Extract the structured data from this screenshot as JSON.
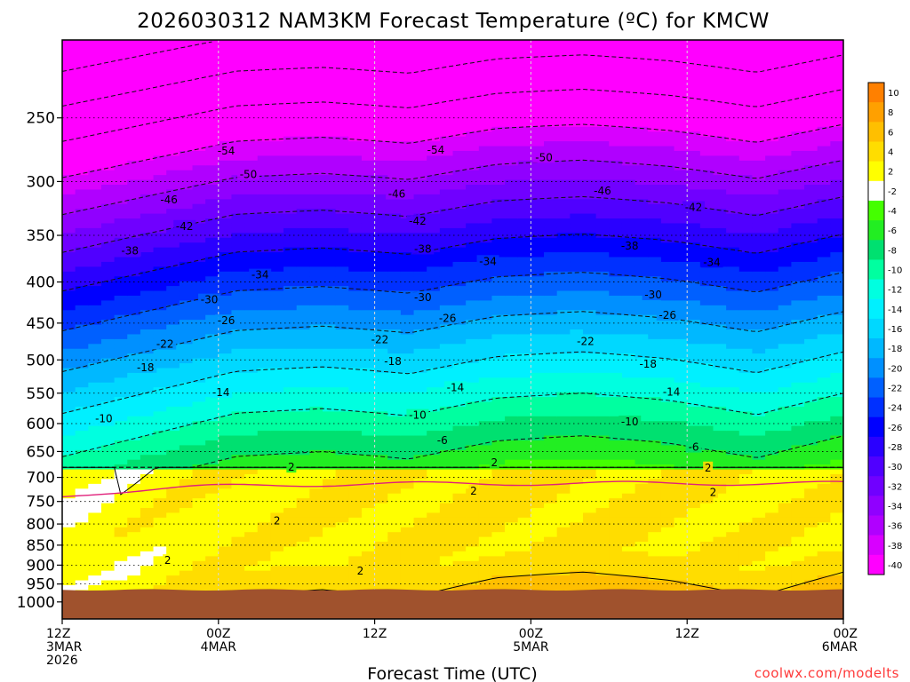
{
  "chart_data": {
    "type": "heatmap",
    "title": "2026030312 NAM3KM Forecast Temperature (ºC) for KMCW",
    "xlabel": "Forecast Time (UTC)",
    "ylabel": "",
    "units": "°C",
    "credit": "coolwx.com/modelts",
    "x_hours_range": [
      0,
      60
    ],
    "x_ticks": [
      {
        "hour": 0,
        "lines": [
          "12Z",
          "3MAR",
          "2026"
        ]
      },
      {
        "hour": 12,
        "lines": [
          "00Z",
          "4MAR"
        ]
      },
      {
        "hour": 24,
        "lines": [
          "12Z"
        ]
      },
      {
        "hour": 36,
        "lines": [
          "00Z",
          "5MAR"
        ]
      },
      {
        "hour": 48,
        "lines": [
          "12Z"
        ]
      },
      {
        "hour": 60,
        "lines": [
          "00Z",
          "6MAR"
        ]
      }
    ],
    "y_levels_hpa": [
      1000,
      950,
      900,
      850,
      800,
      750,
      700,
      650,
      600,
      550,
      500,
      450,
      400,
      350,
      300,
      250
    ],
    "y_range_hpa": [
      1050,
      200
    ],
    "colorbar": {
      "labels": [
        10,
        8,
        6,
        4,
        2,
        -2,
        -4,
        -6,
        -8,
        -10,
        -12,
        -14,
        -16,
        -18,
        -20,
        -22,
        -24,
        -26,
        -28,
        -30,
        -32,
        -34,
        -36,
        -38,
        -40
      ],
      "colors": [
        "#ff8000",
        "#ffa000",
        "#ffbf00",
        "#ffdd00",
        "#ffff00",
        "#ffffff",
        "#44ff00",
        "#22ee22",
        "#00e070",
        "#00ffa0",
        "#00ffe0",
        "#00f0ff",
        "#00d8ff",
        "#00b8ff",
        "#0090ff",
        "#0060ff",
        "#0030ff",
        "#0000ff",
        "#2a00ff",
        "#5000ff",
        "#7000ff",
        "#9000ff",
        "#b000ff",
        "#d800ff",
        "#ff00ff"
      ]
    },
    "contour_labels": [
      {
        "v": "-54",
        "h": 12.6,
        "p": 275
      },
      {
        "v": "-54",
        "h": 28.7,
        "p": 274
      },
      {
        "v": "-50",
        "h": 14.3,
        "p": 294
      },
      {
        "v": "-50",
        "h": 37.0,
        "p": 280
      },
      {
        "v": "-46",
        "h": 8.2,
        "p": 316
      },
      {
        "v": "-46",
        "h": 25.7,
        "p": 311
      },
      {
        "v": "-46",
        "h": 41.5,
        "p": 308
      },
      {
        "v": "-42",
        "h": 9.4,
        "p": 341
      },
      {
        "v": "-42",
        "h": 27.3,
        "p": 336
      },
      {
        "v": "-42",
        "h": 48.5,
        "p": 323
      },
      {
        "v": "-38",
        "h": 5.2,
        "p": 366
      },
      {
        "v": "-38",
        "h": 27.7,
        "p": 364
      },
      {
        "v": "-38",
        "h": 43.6,
        "p": 361
      },
      {
        "v": "-34",
        "h": 15.2,
        "p": 392
      },
      {
        "v": "-34",
        "h": 32.7,
        "p": 377
      },
      {
        "v": "-34",
        "h": 49.9,
        "p": 378
      },
      {
        "v": "-30",
        "h": 11.3,
        "p": 421
      },
      {
        "v": "-30",
        "h": 27.7,
        "p": 418
      },
      {
        "v": "-30",
        "h": 45.4,
        "p": 415
      },
      {
        "v": "-26",
        "h": 12.6,
        "p": 447
      },
      {
        "v": "-26",
        "h": 29.6,
        "p": 444
      },
      {
        "v": "-26",
        "h": 46.5,
        "p": 440
      },
      {
        "v": "-22",
        "h": 7.9,
        "p": 478
      },
      {
        "v": "-22",
        "h": 24.4,
        "p": 472
      },
      {
        "v": "-22",
        "h": 40.2,
        "p": 474
      },
      {
        "v": "-18",
        "h": 6.4,
        "p": 511
      },
      {
        "v": "-18",
        "h": 25.4,
        "p": 502
      },
      {
        "v": "-18",
        "h": 45.0,
        "p": 506
      },
      {
        "v": "-14",
        "h": 12.2,
        "p": 549
      },
      {
        "v": "-14",
        "h": 30.2,
        "p": 541
      },
      {
        "v": "-14",
        "h": 46.8,
        "p": 548
      },
      {
        "v": "-10",
        "h": 3.2,
        "p": 592
      },
      {
        "v": "-10",
        "h": 27.3,
        "p": 586
      },
      {
        "v": "-10",
        "h": 43.6,
        "p": 597
      },
      {
        "v": "-6",
        "h": 29.2,
        "p": 630
      },
      {
        "v": "-6",
        "h": 48.5,
        "p": 642
      },
      {
        "v": "2",
        "h": 17.6,
        "p": 680
      },
      {
        "v": "2",
        "h": 33.2,
        "p": 671
      },
      {
        "v": "2",
        "h": 49.6,
        "p": 681
      },
      {
        "v": "2",
        "h": 31.6,
        "p": 728
      },
      {
        "v": "2",
        "h": 50.0,
        "p": 731
      },
      {
        "v": "2",
        "h": 16.5,
        "p": 793
      },
      {
        "v": "2",
        "h": 8.1,
        "p": 888
      },
      {
        "v": "2",
        "h": 22.9,
        "p": 915
      }
    ]
  }
}
